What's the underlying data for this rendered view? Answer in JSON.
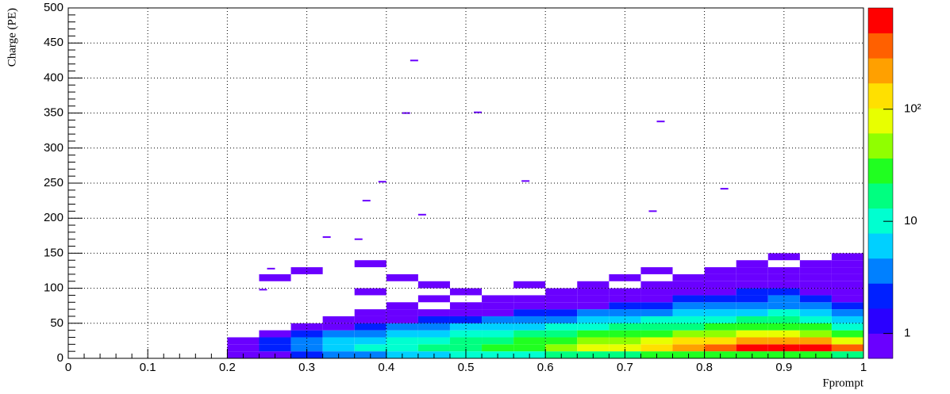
{
  "chart_data": {
    "type": "heatmap",
    "x_label": "Fprompt",
    "y_label": "Charge (PE)",
    "xlim": [
      0,
      1
    ],
    "xticks": [
      0,
      0.1,
      0.2,
      0.3,
      0.4,
      0.5,
      0.6,
      0.7,
      0.8,
      0.9,
      1
    ],
    "ylim": [
      0,
      500
    ],
    "yticks": [
      0,
      50,
      100,
      150,
      200,
      250,
      300,
      350,
      400,
      450,
      500
    ],
    "grid": true,
    "zlog": true,
    "zlim": [
      0.6,
      800
    ],
    "zticks": [
      1,
      10,
      {
        "value": 100,
        "label": "10²"
      }
    ],
    "palette": [
      "#6a00ff",
      "#2a00ff",
      "#0020ff",
      "#0080ff",
      "#00d0ff",
      "#00ffd0",
      "#00ff80",
      "#20ff20",
      "#90ff00",
      "#e8ff00",
      "#ffe000",
      "#ffa000",
      "#ff6000",
      "#ff0000"
    ],
    "xbins": [
      0.2,
      0.24,
      0.28,
      0.32,
      0.36,
      0.4,
      0.44,
      0.48,
      0.52,
      0.56,
      0.6,
      0.64,
      0.68,
      0.72,
      0.76,
      0.8,
      0.84,
      0.88,
      0.92,
      0.96,
      1.0
    ],
    "ybins": [
      0,
      10,
      20,
      30,
      40,
      50,
      60,
      70,
      80,
      90,
      100,
      110,
      120,
      130,
      140,
      150
    ],
    "z": [
      [
        1,
        1,
        2,
        3,
        4,
        5,
        6,
        8,
        10,
        12,
        15,
        18,
        20,
        22,
        25,
        28,
        30,
        30,
        28,
        20
      ],
      [
        1,
        2,
        3,
        5,
        8,
        10,
        14,
        18,
        25,
        35,
        50,
        70,
        100,
        150,
        250,
        400,
        600,
        650,
        550,
        300
      ],
      [
        1,
        2,
        3,
        5,
        7,
        9,
        12,
        15,
        20,
        25,
        35,
        45,
        60,
        80,
        110,
        150,
        200,
        220,
        180,
        90
      ],
      [
        0,
        1,
        2,
        3,
        4,
        5,
        7,
        9,
        11,
        14,
        18,
        22,
        28,
        35,
        45,
        55,
        65,
        70,
        60,
        30
      ],
      [
        0,
        0,
        1,
        1,
        2,
        3,
        4,
        5,
        6,
        7,
        9,
        11,
        14,
        17,
        20,
        24,
        28,
        30,
        25,
        12
      ],
      [
        0,
        0,
        0,
        1,
        1,
        1,
        2,
        2,
        3,
        3,
        4,
        5,
        6,
        8,
        10,
        12,
        14,
        15,
        12,
        6
      ],
      [
        0,
        0,
        0,
        0,
        1,
        1,
        1,
        1,
        1,
        2,
        2,
        3,
        3,
        4,
        5,
        6,
        7,
        8,
        6,
        3
      ],
      [
        0,
        0,
        0,
        0,
        0,
        1,
        0,
        1,
        1,
        1,
        1,
        1,
        2,
        2,
        3,
        3,
        4,
        4,
        3,
        2
      ],
      [
        0,
        0,
        0,
        0,
        0,
        0,
        1,
        0,
        1,
        1,
        1,
        1,
        1,
        1,
        2,
        2,
        2,
        3,
        2,
        1
      ],
      [
        0,
        0,
        0,
        0,
        1,
        0,
        0,
        1,
        0,
        0,
        1,
        1,
        1,
        1,
        1,
        1,
        2,
        2,
        1,
        1
      ],
      [
        0,
        0,
        0,
        0,
        0,
        0,
        1,
        0,
        0,
        1,
        0,
        1,
        0,
        1,
        1,
        1,
        1,
        1,
        1,
        1
      ],
      [
        0,
        1,
        0,
        0,
        0,
        1,
        0,
        0,
        0,
        0,
        0,
        0,
        1,
        0,
        1,
        1,
        1,
        1,
        1,
        1
      ],
      [
        0,
        0,
        1,
        0,
        0,
        0,
        0,
        0,
        0,
        0,
        0,
        0,
        0,
        1,
        0,
        1,
        1,
        1,
        1,
        1
      ],
      [
        0,
        0,
        0,
        0,
        1,
        0,
        0,
        0,
        0,
        0,
        0,
        0,
        0,
        0,
        0,
        0,
        1,
        0,
        1,
        1
      ],
      [
        0,
        0,
        0,
        0,
        0,
        0,
        0,
        0,
        0,
        0,
        0,
        0,
        0,
        0,
        0,
        0,
        0,
        1,
        0,
        1
      ]
    ],
    "sparse": [
      [
        0.435,
        425,
        1
      ],
      [
        0.425,
        350,
        1
      ],
      [
        0.515,
        351,
        1
      ],
      [
        0.745,
        338,
        1
      ],
      [
        0.395,
        252,
        1
      ],
      [
        0.575,
        253,
        1
      ],
      [
        0.825,
        242,
        1
      ],
      [
        0.375,
        225,
        1
      ],
      [
        0.445,
        205,
        1
      ],
      [
        0.735,
        210,
        1
      ],
      [
        0.325,
        173,
        1
      ],
      [
        0.365,
        170,
        1
      ],
      [
        0.255,
        128,
        1
      ],
      [
        0.245,
        98,
        1
      ]
    ]
  }
}
